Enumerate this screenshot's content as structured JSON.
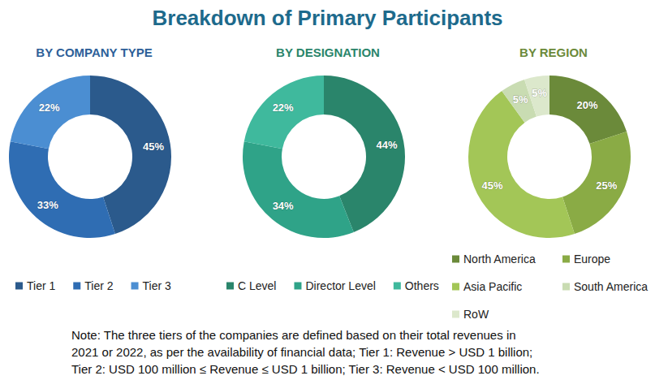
{
  "title": "Breakdown of Primary Participants",
  "chart_data": [
    {
      "type": "pie",
      "title": "BY COMPANY TYPE",
      "categories": [
        "Tier 1",
        "Tier 2",
        "Tier 3"
      ],
      "values": [
        45,
        33,
        22
      ],
      "value_labels": [
        "45%",
        "33%",
        "22%"
      ],
      "colors": [
        "#2b5a8c",
        "#2f6db3",
        "#4b8ed2"
      ],
      "data_labels": true,
      "legend": "bottom"
    },
    {
      "type": "pie",
      "title": "BY DESIGNATION",
      "categories": [
        "C Level",
        "Director Level",
        "Others"
      ],
      "values": [
        44,
        34,
        22
      ],
      "value_labels": [
        "44%",
        "34%",
        "22%"
      ],
      "colors": [
        "#2a856b",
        "#2fa388",
        "#3fb99d"
      ],
      "data_labels": true,
      "legend": "bottom"
    },
    {
      "type": "pie",
      "title": "BY REGION",
      "categories": [
        "North America",
        "Europe",
        "Asia Pacific",
        "South America",
        "RoW"
      ],
      "values": [
        20,
        25,
        45,
        5,
        5
      ],
      "value_labels": [
        "20%",
        "25%",
        "45%",
        "5%",
        "5%"
      ],
      "colors": [
        "#6b8a3a",
        "#8aab45",
        "#a3c657",
        "#c9dcb2",
        "#dce8cc"
      ],
      "data_labels": true,
      "legend": "bottom"
    }
  ],
  "note": [
    "Note: The three tiers of the companies are defined based on their total revenues in",
    "2021 or 2022, as per the availability of financial data; Tier 1: Revenue > USD 1 billion;",
    "Tier 2: USD 100 million ≤ Revenue ≤ USD 1 billion; Tier 3: Revenue < USD 100 million."
  ]
}
